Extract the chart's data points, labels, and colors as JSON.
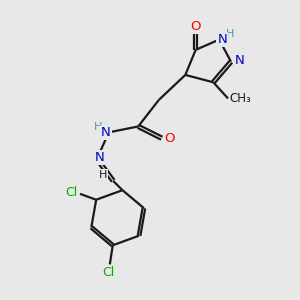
{
  "bg_color": "#e8e8e8",
  "bond_color": "#1a1a1a",
  "atom_colors": {
    "O": "#ff0000",
    "N": "#0000cd",
    "Cl": "#00aa00",
    "H": "#4a9999",
    "C": "#1a1a1a"
  },
  "figsize": [
    3.0,
    3.0
  ],
  "dpi": 100,
  "xlim": [
    0,
    10
  ],
  "ylim": [
    0,
    10
  ]
}
